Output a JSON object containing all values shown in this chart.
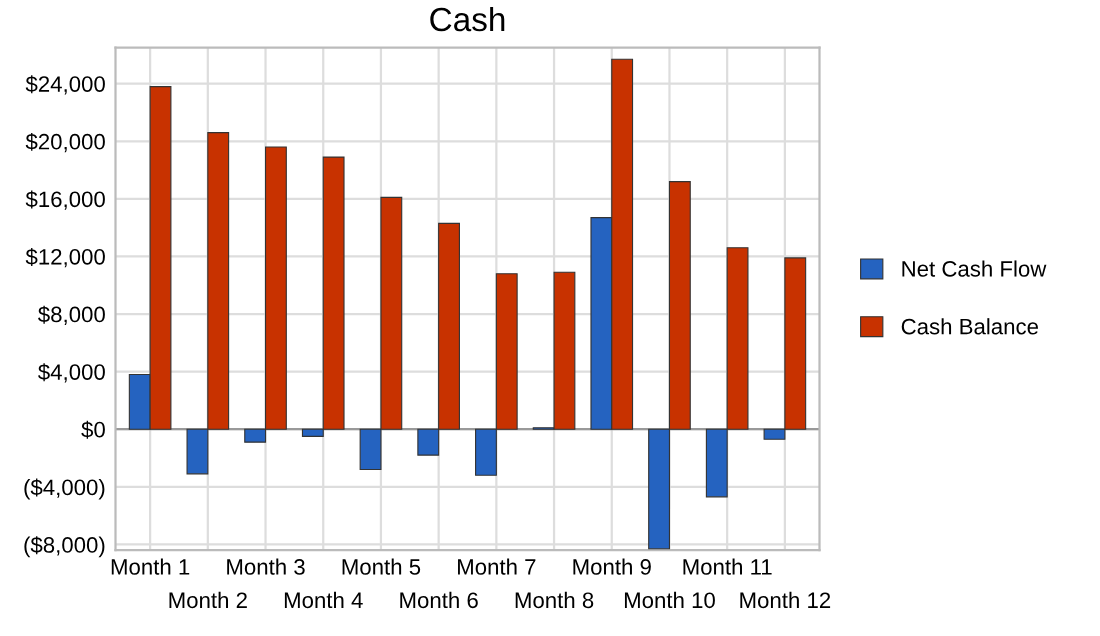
{
  "chart_data": {
    "type": "bar",
    "title": "Cash",
    "categories": [
      "Month 1",
      "Month 2",
      "Month 3",
      "Month 4",
      "Month 5",
      "Month 6",
      "Month 7",
      "Month 8",
      "Month 9",
      "Month 10",
      "Month 11",
      "Month 12"
    ],
    "series": [
      {
        "name": "Net Cash Flow",
        "color": "#2563c0",
        "values": [
          3800,
          -3100,
          -900,
          -500,
          -2800,
          -1800,
          -3200,
          100,
          14700,
          -8300,
          -4700,
          -700
        ]
      },
      {
        "name": "Cash Balance",
        "color": "#c83200",
        "values": [
          23800,
          20600,
          19600,
          18900,
          16100,
          14300,
          10800,
          10900,
          25700,
          17200,
          12600,
          11900
        ]
      }
    ],
    "ylim": [
      -8400,
      26500
    ],
    "yticks": [
      {
        "value": -8000,
        "label": "($8,000)"
      },
      {
        "value": -4000,
        "label": "($4,000)"
      },
      {
        "value": 0,
        "label": "$0"
      },
      {
        "value": 4000,
        "label": "$4,000"
      },
      {
        "value": 8000,
        "label": "$8,000"
      },
      {
        "value": 12000,
        "label": "$12,000"
      },
      {
        "value": 16000,
        "label": "$16,000"
      },
      {
        "value": 20000,
        "label": "$20,000"
      },
      {
        "value": 24000,
        "label": "$24,000"
      }
    ],
    "grid": true,
    "legend": "right"
  }
}
